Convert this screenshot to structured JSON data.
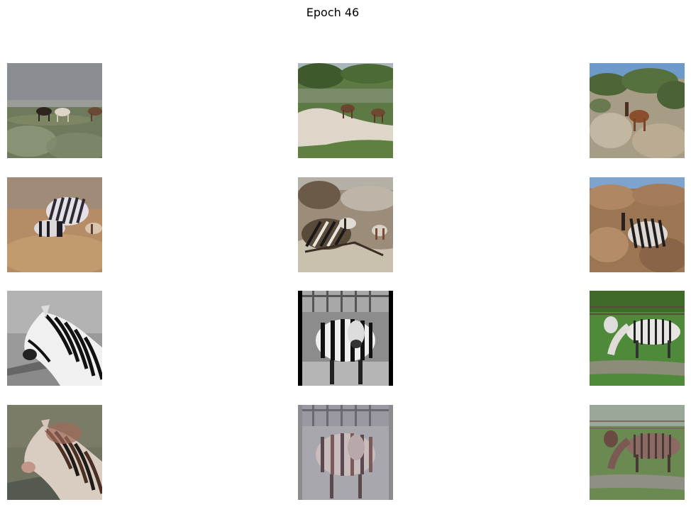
{
  "figure": {
    "title": "Epoch 46"
  },
  "grid": {
    "rows": 4,
    "columns": 3,
    "tiles": [
      {
        "row": 0,
        "col": 0,
        "subject": "three-horses-grazing-in-field"
      },
      {
        "row": 0,
        "col": 1,
        "subject": "two-horses-on-sandy-hill"
      },
      {
        "row": 0,
        "col": 2,
        "subject": "brown-horse-on-rocky-slope"
      },
      {
        "row": 1,
        "col": 0,
        "subject": "generated-zebra-in-brown-field"
      },
      {
        "row": 1,
        "col": 1,
        "subject": "generated-zebras-on-sandy-hill"
      },
      {
        "row": 1,
        "col": 2,
        "subject": "generated-zebra-on-rocky-slope"
      },
      {
        "row": 2,
        "col": 0,
        "subject": "grayscale-zebra-head"
      },
      {
        "row": 2,
        "col": 1,
        "subject": "grayscale-zebra-front-facing"
      },
      {
        "row": 2,
        "col": 2,
        "subject": "zebra-grazing-on-green-grass"
      },
      {
        "row": 3,
        "col": 0,
        "subject": "generated-horse-from-zebra-head"
      },
      {
        "row": 3,
        "col": 1,
        "subject": "generated-horses-front-facing"
      },
      {
        "row": 3,
        "col": 2,
        "subject": "generated-horse-grazing-on-grass"
      }
    ]
  }
}
